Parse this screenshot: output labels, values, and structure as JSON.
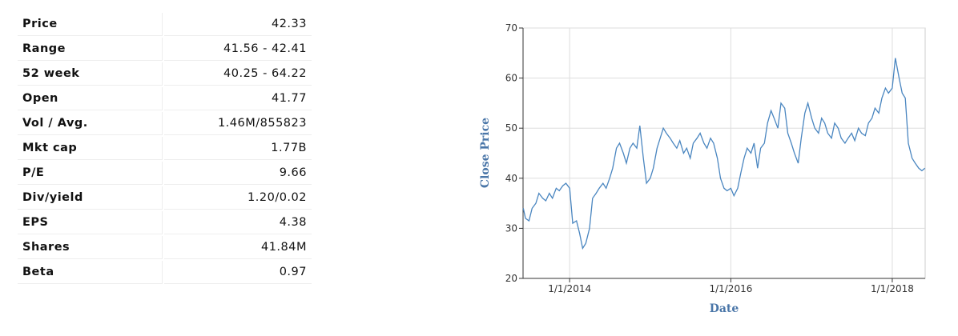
{
  "table": {
    "rows": [
      [
        "Price",
        "42.33"
      ],
      [
        "Range",
        "41.56 - 42.41"
      ],
      [
        "52 week",
        "40.25 - 64.22"
      ],
      [
        "Open",
        "41.77"
      ],
      [
        "Vol / Avg.",
        "1.46M/855823"
      ],
      [
        "Mkt cap",
        "1.77B"
      ],
      [
        "P/E",
        "9.66"
      ],
      [
        "Div/yield",
        "1.20/0.02"
      ],
      [
        "EPS",
        "4.38"
      ],
      [
        "Shares",
        "41.84M"
      ],
      [
        "Beta",
        "0.97"
      ]
    ]
  },
  "chart_data": {
    "type": "line",
    "x_label": "Date",
    "y_label": "Close Price",
    "color": "#4a86c0",
    "grid": true,
    "xlim": [
      "2013-06-04",
      "2018-05-30"
    ],
    "xticks": [
      {
        "value": "2014-01-01",
        "label": "1/1/2014"
      },
      {
        "value": "2016-01-01",
        "label": "1/1/2016"
      },
      {
        "value": "2018-01-01",
        "label": "1/1/2018"
      }
    ],
    "ylim": [
      20,
      70
    ],
    "yticks": [
      20,
      30,
      40,
      50,
      60,
      70
    ],
    "x": [
      "2013-06-05",
      "2013-06-15",
      "2013-07-01",
      "2013-07-15",
      "2013-08-01",
      "2013-08-15",
      "2013-09-01",
      "2013-09-15",
      "2013-10-01",
      "2013-10-15",
      "2013-11-01",
      "2013-11-15",
      "2013-12-01",
      "2013-12-15",
      "2014-01-01",
      "2014-01-15",
      "2014-02-01",
      "2014-02-15",
      "2014-03-01",
      "2014-03-15",
      "2014-04-01",
      "2014-04-15",
      "2014-05-01",
      "2014-05-15",
      "2014-06-01",
      "2014-06-15",
      "2014-07-01",
      "2014-07-15",
      "2014-08-01",
      "2014-08-15",
      "2014-09-01",
      "2014-09-15",
      "2014-10-01",
      "2014-10-15",
      "2014-11-01",
      "2014-11-15",
      "2014-12-01",
      "2014-12-15",
      "2015-01-01",
      "2015-01-15",
      "2015-02-01",
      "2015-02-15",
      "2015-03-01",
      "2015-03-15",
      "2015-04-01",
      "2015-04-15",
      "2015-05-01",
      "2015-05-15",
      "2015-06-01",
      "2015-06-15",
      "2015-07-01",
      "2015-07-15",
      "2015-08-01",
      "2015-08-15",
      "2015-09-01",
      "2015-09-15",
      "2015-10-01",
      "2015-10-15",
      "2015-11-01",
      "2015-11-15",
      "2015-12-01",
      "2015-12-15",
      "2016-01-01",
      "2016-01-15",
      "2016-02-01",
      "2016-02-15",
      "2016-03-01",
      "2016-03-15",
      "2016-04-01",
      "2016-04-15",
      "2016-05-01",
      "2016-05-15",
      "2016-06-01",
      "2016-06-15",
      "2016-07-01",
      "2016-07-15",
      "2016-08-01",
      "2016-08-15",
      "2016-09-01",
      "2016-09-15",
      "2016-10-01",
      "2016-10-15",
      "2016-11-01",
      "2016-11-15",
      "2016-12-01",
      "2016-12-15",
      "2017-01-01",
      "2017-01-15",
      "2017-02-01",
      "2017-02-15",
      "2017-03-01",
      "2017-03-15",
      "2017-04-01",
      "2017-04-15",
      "2017-05-01",
      "2017-05-15",
      "2017-06-01",
      "2017-06-15",
      "2017-07-01",
      "2017-07-15",
      "2017-08-01",
      "2017-08-15",
      "2017-09-01",
      "2017-09-15",
      "2017-10-01",
      "2017-10-15",
      "2017-11-01",
      "2017-11-15",
      "2017-12-01",
      "2017-12-15",
      "2018-01-01",
      "2018-01-15",
      "2018-02-01",
      "2018-02-15",
      "2018-03-01",
      "2018-03-15",
      "2018-04-01",
      "2018-04-15",
      "2018-05-01",
      "2018-05-15",
      "2018-05-29"
    ],
    "values": [
      34,
      32,
      31.5,
      34,
      35,
      37,
      36,
      35.5,
      37,
      36,
      38,
      37.5,
      38.5,
      39,
      38,
      31,
      31.5,
      29,
      26,
      27,
      30,
      36,
      37,
      38,
      39,
      38,
      40,
      42,
      46,
      47,
      45,
      43,
      46,
      47,
      46,
      50.5,
      44,
      39,
      40,
      42,
      46,
      48,
      50,
      49,
      48,
      47,
      46,
      47.5,
      45,
      46,
      44,
      47,
      48,
      49,
      47,
      46,
      48,
      47,
      44,
      40,
      38,
      37.5,
      38,
      36.5,
      38,
      41,
      44,
      46,
      45,
      47,
      42,
      46,
      47,
      51,
      53.5,
      52,
      50,
      55,
      54,
      49,
      47,
      45,
      43,
      48,
      53,
      55,
      52,
      50,
      49,
      52,
      51,
      49,
      48,
      51,
      50,
      48,
      47,
      48,
      49,
      47.5,
      50,
      49,
      48.5,
      51,
      52,
      54,
      53,
      56,
      58,
      57,
      58,
      64,
      60,
      57,
      56,
      47,
      44,
      43,
      42,
      41.5,
      42
    ]
  }
}
